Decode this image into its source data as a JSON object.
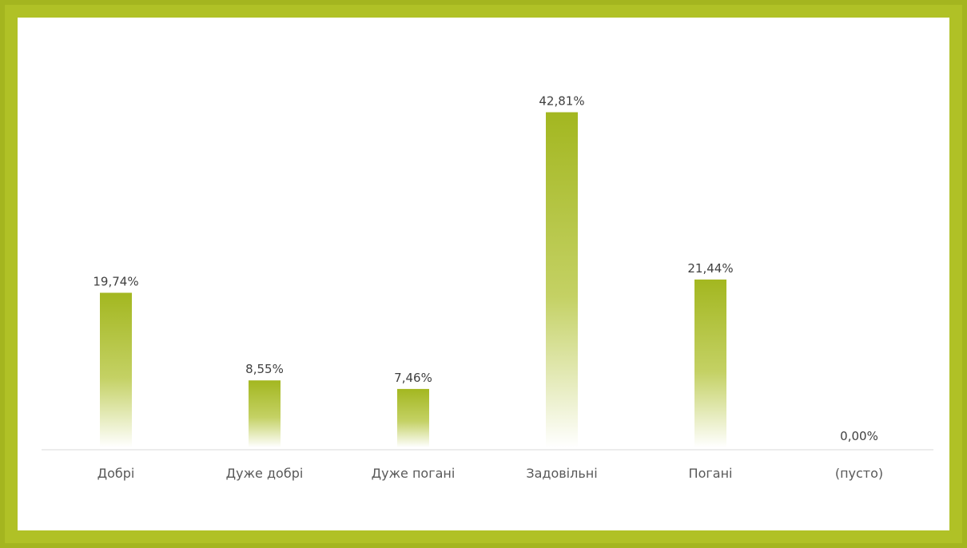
{
  "colors": {
    "frame": "#a4b51f",
    "bar_top": "#a3b720",
    "bar_bottom": "#ffffff",
    "axis": "#d9d9d9",
    "label": "#404040",
    "category": "#595959"
  },
  "chart_data": {
    "type": "bar",
    "categories": [
      "Добрі",
      "Дуже добрі",
      "Дуже погані",
      "Задовільні",
      "Погані",
      "(пусто)"
    ],
    "values": [
      19.74,
      8.55,
      7.46,
      42.81,
      21.44,
      0.0
    ],
    "data_labels": [
      "19,74%",
      "8,55%",
      "7,46%",
      "42,81%",
      "21,44%",
      "0,00%"
    ],
    "ylim": [
      0,
      45
    ],
    "grid": false,
    "legend": "none",
    "title": "",
    "xlabel": "",
    "ylabel": ""
  }
}
